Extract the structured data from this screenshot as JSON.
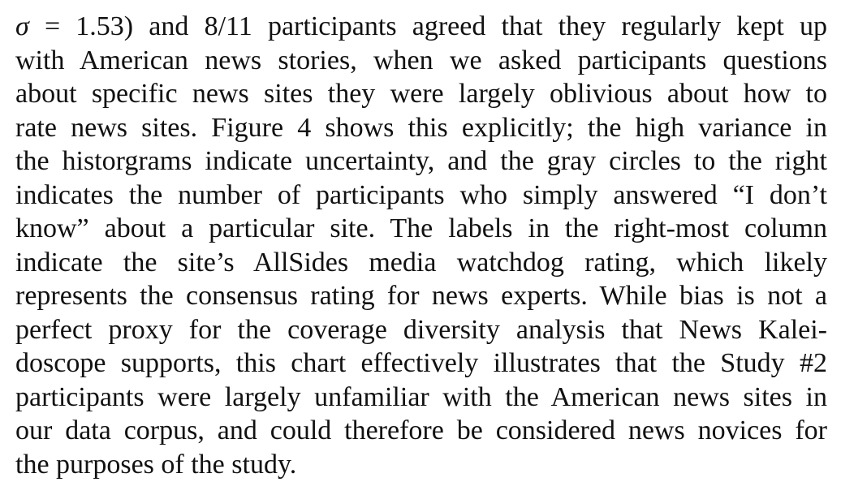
{
  "paper": {
    "paragraph": {
      "math_symbol": "σ",
      "lines": [
        " = 1.53) and 8/11 participants agreed that they regularly kept up",
        "with American news stories, when we asked participants questions",
        "about specific news sites they were largely oblivious about how to",
        "rate news sites. Figure 4 shows this explicitly; the high variance in",
        "the historgrams indicate uncertainty, and the gray circles to the right",
        "indicates the number of participants who simply answered “I don’t",
        "know” about a particular site. The labels in the right-most column",
        "indicate the site’s AllSides media watchdog rating, which likely",
        "represents the consensus rating for news experts. While bias is not a",
        "perfect proxy for the coverage diversity analysis that News Kalei-",
        "doscope supports, this chart effectively illustrates that the Study #2",
        "participants were largely unfamiliar with the American news sites in",
        "our data corpus, and could therefore be considered news novices for",
        "the purposes of the study."
      ]
    }
  }
}
